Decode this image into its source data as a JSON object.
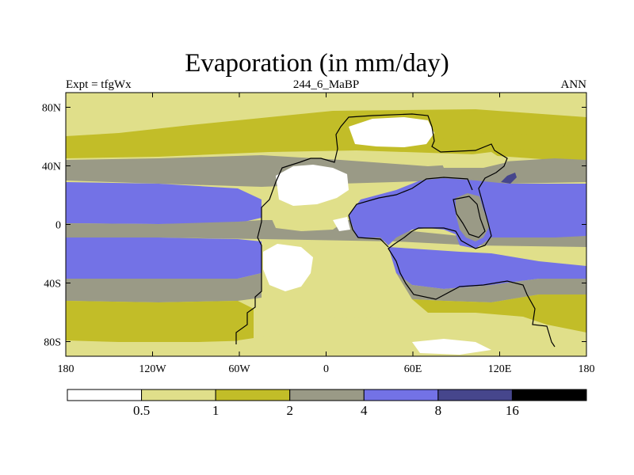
{
  "title": "Evaporation (in mm/day)",
  "subtitle_left": "Expt = tfgWx",
  "subtitle_center": "244_6_MaBP",
  "subtitle_right": "ANN",
  "map": {
    "lon_range": [
      -180,
      180
    ],
    "lat_range": [
      -90,
      90
    ],
    "x_ticks": [
      {
        "value": -180,
        "label": "180"
      },
      {
        "value": -120,
        "label": "120W"
      },
      {
        "value": -60,
        "label": "60W"
      },
      {
        "value": 0,
        "label": "0"
      },
      {
        "value": 60,
        "label": "60E"
      },
      {
        "value": 120,
        "label": "120E"
      },
      {
        "value": 180,
        "label": "180"
      }
    ],
    "y_ticks": [
      {
        "value": 80,
        "label": "80N"
      },
      {
        "value": 40,
        "label": "40N"
      },
      {
        "value": 0,
        "label": "0"
      },
      {
        "value": -40,
        "label": "40S"
      },
      {
        "value": -80,
        "label": "80S"
      }
    ]
  },
  "colorbar": {
    "levels": [
      "0.5",
      "1",
      "2",
      "4",
      "8",
      "16"
    ],
    "colors": [
      "#ffffff",
      "#e0df8a",
      "#c2bd28",
      "#9a9a86",
      "#7372e6",
      "#46468c",
      "#000000"
    ]
  },
  "chart_data": {
    "type": "heatmap",
    "title": "Evaporation (in mm/day)",
    "variable": "Evaporation",
    "units": "mm/day",
    "experiment": "tfgWx",
    "period": "244_6_MaBP",
    "season": "ANN",
    "xlabel": "",
    "ylabel": "",
    "xlim": [
      -180,
      180
    ],
    "ylim": [
      -90,
      90
    ],
    "contour_levels": [
      0.5,
      1,
      2,
      4,
      8,
      16
    ]
  }
}
